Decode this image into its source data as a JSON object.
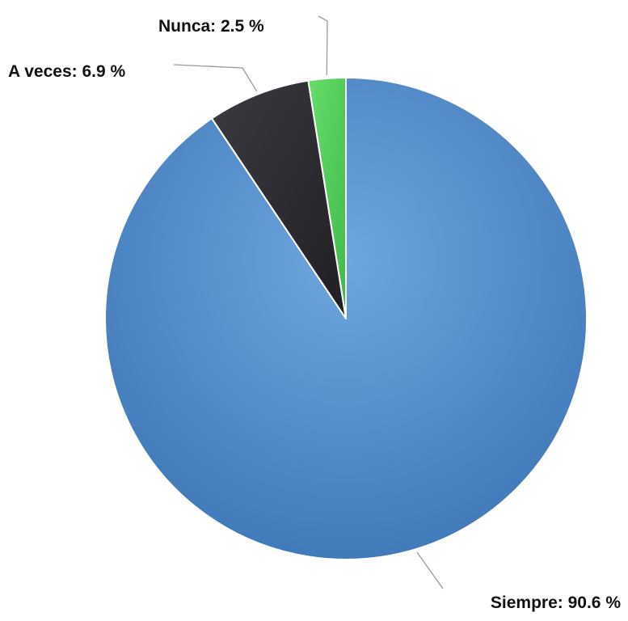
{
  "chart_data": {
    "type": "pie",
    "title": "",
    "slices": [
      {
        "label": "Siempre",
        "value": 90.6,
        "display": "Siempre: 90.6 %",
        "color": "#4f88c6"
      },
      {
        "label": "A veces",
        "value": 6.9,
        "display": "A veces: 6.9 %",
        "color": "#2b2b30"
      },
      {
        "label": "Nunca",
        "value": 2.5,
        "display": "Nunca: 2.5 %",
        "color": "#4fcc55"
      }
    ],
    "start_position": "top",
    "direction": "clockwise",
    "labels": "outside with leader lines"
  }
}
